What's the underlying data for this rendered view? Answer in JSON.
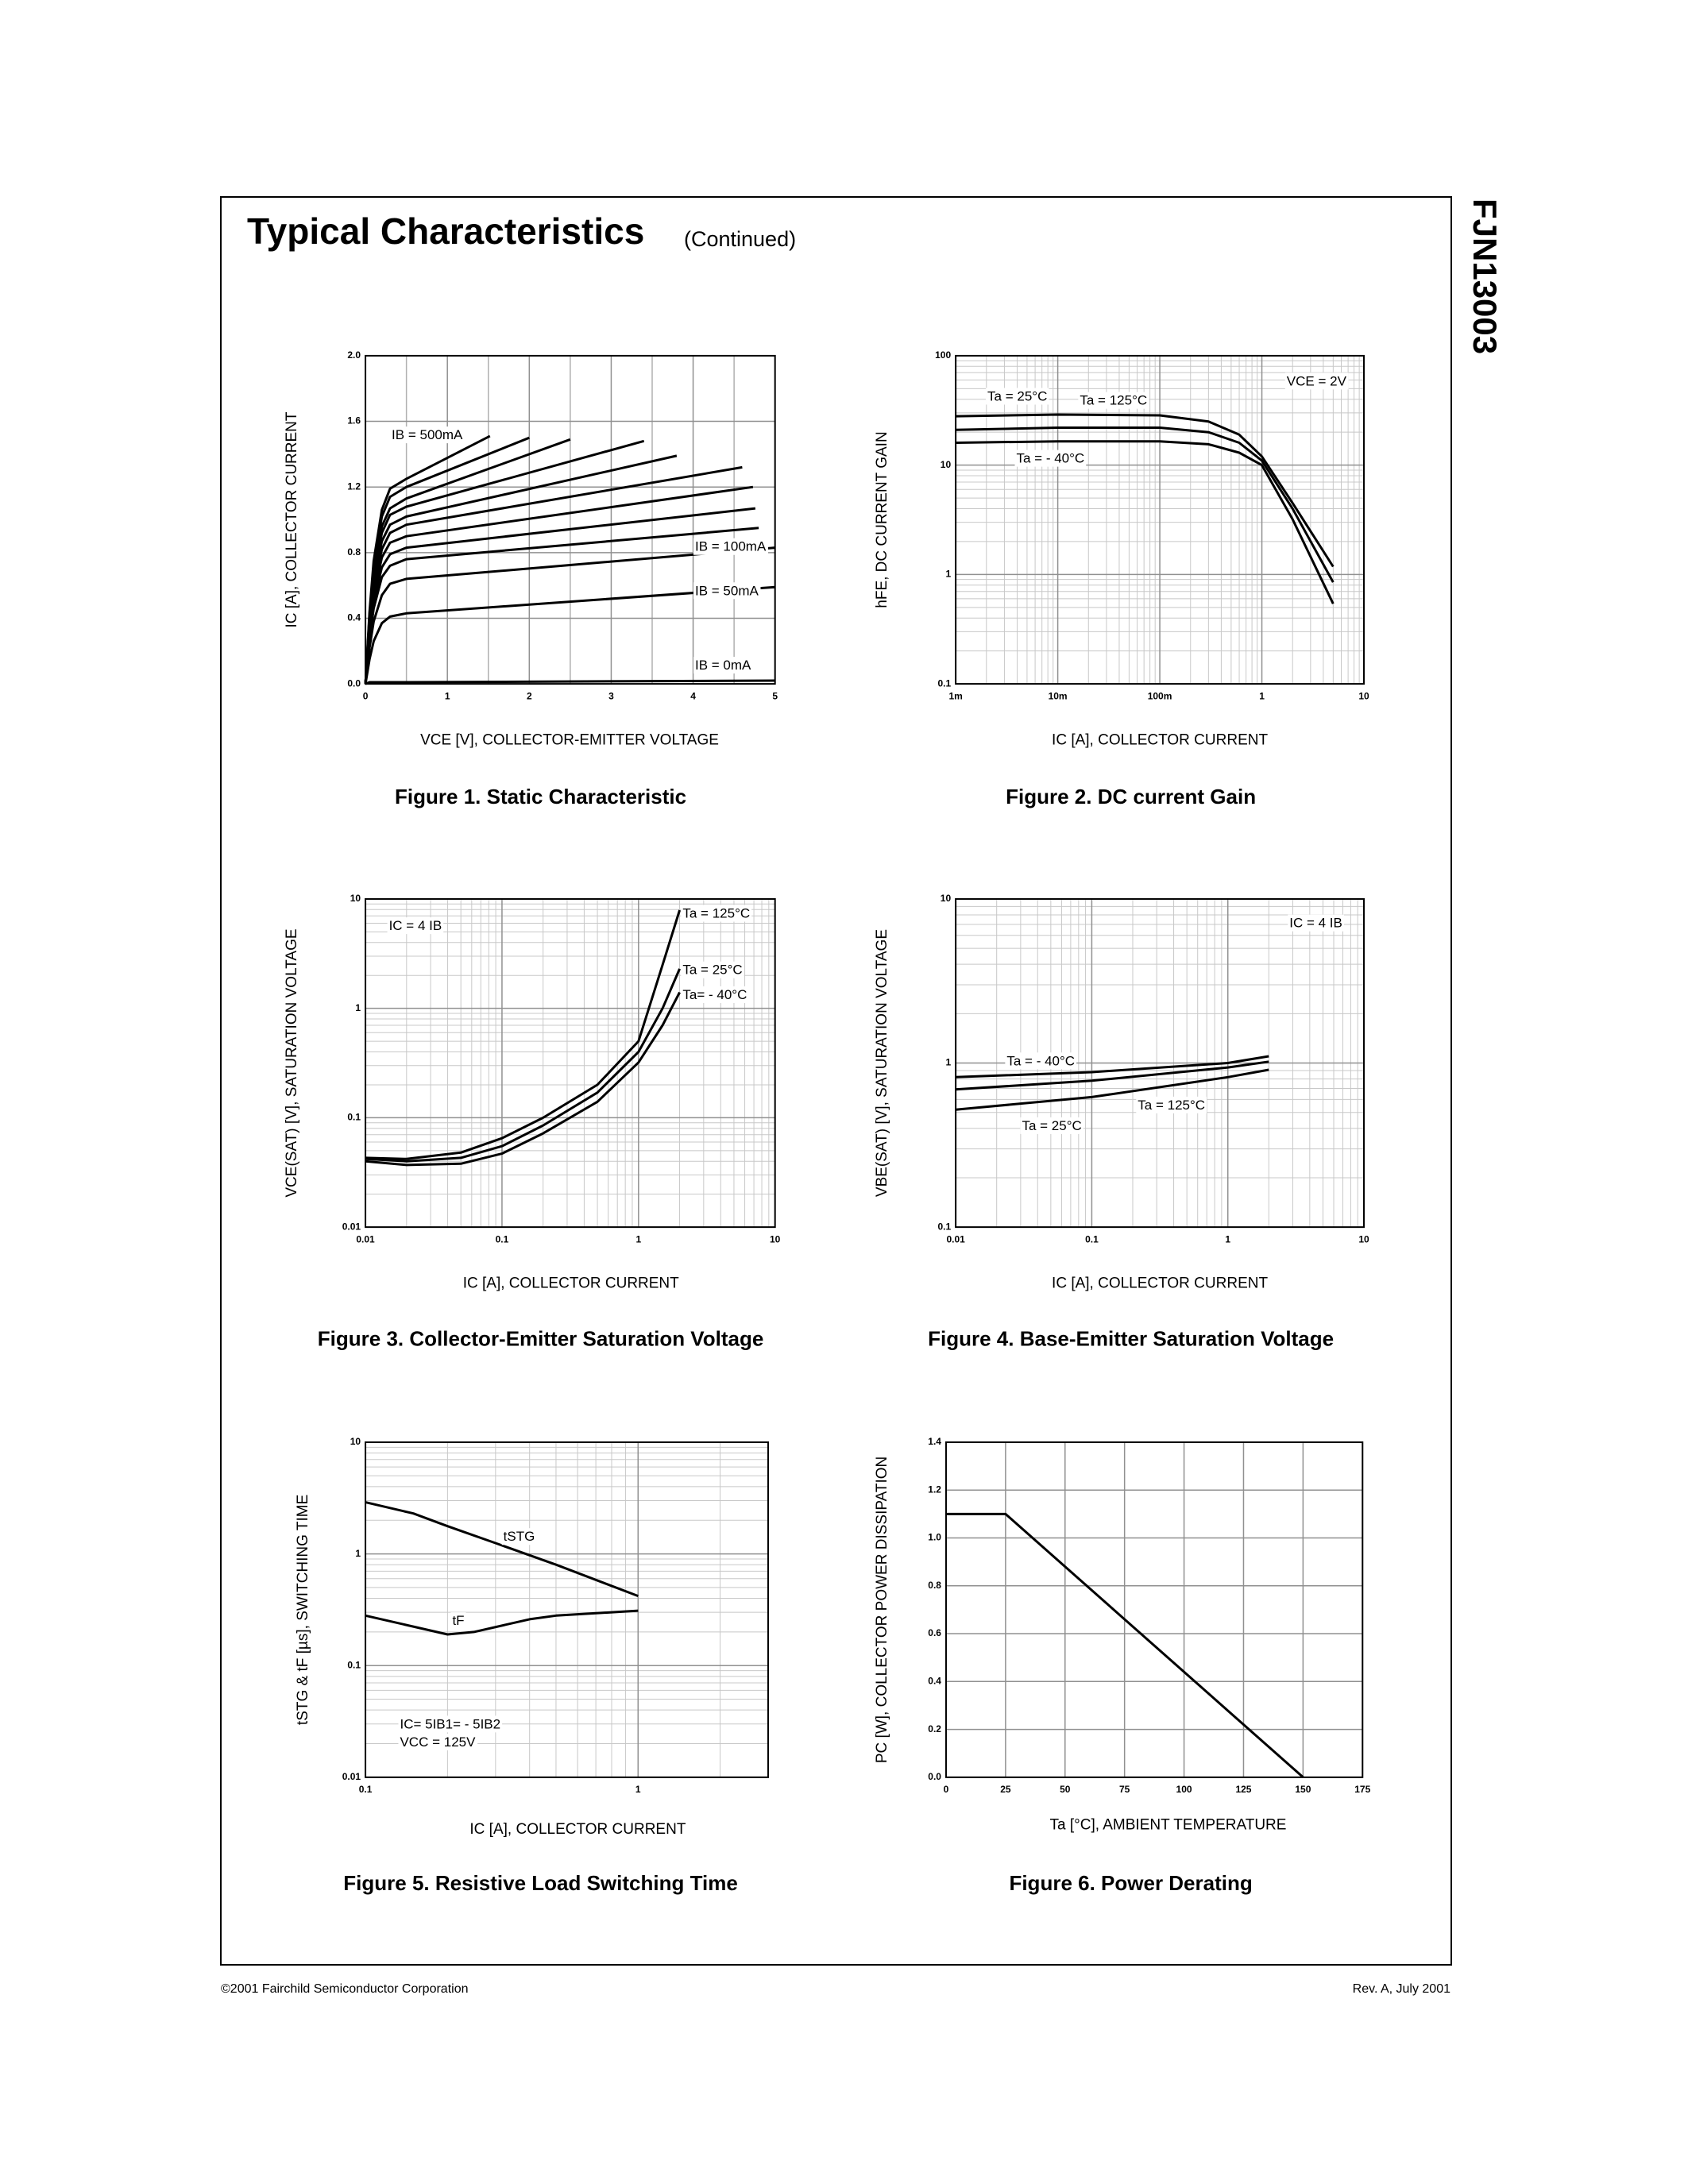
{
  "header": {
    "title": "Typical Characteristics",
    "subtitle": "(Continued)",
    "part_number": "FJN13003"
  },
  "chart_data": [
    {
      "type": "line",
      "title": "Figure 1. Static Characteristic",
      "xlabel": "VCE [V], COLLECTOR-EMITTER VOLTAGE",
      "ylabel": "IC [A], COLLECTOR CURRENT",
      "xscale": "linear",
      "yscale": "linear",
      "xlim": [
        0,
        5
      ],
      "ylim": [
        0,
        2
      ],
      "xticks": [
        0,
        1,
        2,
        3,
        4,
        5
      ],
      "yticks": [
        {
          "value": 0,
          "label": "0.0"
        },
        0.4,
        0.8,
        1.2,
        1.6,
        {
          "value": 2,
          "label": "2.0"
        }
      ],
      "grid": true,
      "series": [
        {
          "name": "IB = 500mA",
          "color": "#000000",
          "x": [
            0,
            0.05,
            0.1,
            0.2,
            0.3,
            0.5,
            1.52
          ],
          "values": [
            0,
            0.44,
            0.75,
            1.06,
            1.19,
            1.25,
            1.51
          ]
        },
        {
          "color": "#000000",
          "x": [
            0,
            0.05,
            0.1,
            0.2,
            0.3,
            0.5,
            2.0
          ],
          "values": [
            0,
            0.42,
            0.72,
            1.02,
            1.14,
            1.2,
            1.5
          ]
        },
        {
          "color": "#000000",
          "x": [
            0,
            0.05,
            0.1,
            0.2,
            0.3,
            0.5,
            2.5
          ],
          "values": [
            0,
            0.4,
            0.68,
            0.96,
            1.07,
            1.13,
            1.49
          ]
        },
        {
          "color": "#000000",
          "x": [
            0,
            0.05,
            0.1,
            0.2,
            0.3,
            0.5,
            3.4
          ],
          "values": [
            0,
            0.38,
            0.65,
            0.92,
            1.03,
            1.08,
            1.48
          ]
        },
        {
          "color": "#000000",
          "x": [
            0,
            0.05,
            0.1,
            0.2,
            0.3,
            0.5,
            3.8
          ],
          "values": [
            0,
            0.36,
            0.61,
            0.87,
            0.97,
            1.02,
            1.39
          ]
        },
        {
          "color": "#000000",
          "x": [
            0,
            0.05,
            0.1,
            0.2,
            0.3,
            0.5,
            4.6
          ],
          "values": [
            0,
            0.34,
            0.58,
            0.82,
            0.92,
            0.97,
            1.32
          ]
        },
        {
          "color": "#000000",
          "x": [
            0,
            0.05,
            0.1,
            0.2,
            0.3,
            0.5,
            4.73
          ],
          "values": [
            0,
            0.32,
            0.54,
            0.77,
            0.86,
            0.9,
            1.2
          ]
        },
        {
          "color": "#000000",
          "x": [
            0,
            0.05,
            0.1,
            0.2,
            0.3,
            0.5,
            4.76
          ],
          "values": [
            0,
            0.29,
            0.5,
            0.71,
            0.79,
            0.83,
            1.07
          ]
        },
        {
          "color": "#000000",
          "x": [
            0,
            0.05,
            0.1,
            0.2,
            0.3,
            0.5,
            4.8
          ],
          "values": [
            0,
            0.27,
            0.46,
            0.65,
            0.72,
            0.76,
            0.95
          ]
        },
        {
          "name": "IB = 100mA",
          "color": "#000000",
          "x": [
            0,
            0.05,
            0.1,
            0.2,
            0.3,
            0.5,
            5
          ],
          "values": [
            0,
            0.22,
            0.38,
            0.54,
            0.61,
            0.64,
            0.83
          ]
        },
        {
          "name": "IB = 50mA",
          "color": "#000000",
          "x": [
            0,
            0.05,
            0.1,
            0.2,
            0.3,
            0.5,
            5
          ],
          "values": [
            0,
            0.15,
            0.26,
            0.37,
            0.41,
            0.43,
            0.59
          ]
        },
        {
          "name": "IB = 0mA",
          "color": "#000000",
          "x": [
            0,
            0.05,
            0.1,
            0.2,
            0.3,
            0.5,
            5
          ],
          "values": [
            0,
            0.01,
            0.01,
            0.01,
            0.01,
            0.01,
            0.02
          ]
        }
      ],
      "annotations": []
    },
    {
      "type": "line",
      "title": "Figure 2. DC current Gain",
      "xlabel": "IC [A], COLLECTOR CURRENT",
      "ylabel": "hFE, DC CURRENT GAIN",
      "xscale": "log",
      "yscale": "log",
      "xlim": [
        0.001,
        10
      ],
      "ylim": [
        0.1,
        100
      ],
      "xticks": [
        {
          "value": 0.001,
          "label": "1m"
        },
        {
          "value": 0.01,
          "label": "10m"
        },
        {
          "value": 0.1,
          "label": "100m"
        },
        1,
        10
      ],
      "yticks": [
        0.1,
        1,
        10,
        100
      ],
      "grid": true,
      "series": [
        {
          "name": "Ta = 125°C",
          "color": "#000000",
          "x": [
            0.001,
            0.01,
            0.1,
            0.3,
            0.6,
            1,
            2,
            5
          ],
          "values": [
            28,
            29,
            28.5,
            25,
            19,
            12,
            4.5,
            1.18
          ]
        },
        {
          "name": "Ta = 25°C",
          "color": "#000000",
          "x": [
            0.001,
            0.01,
            0.1,
            0.3,
            0.6,
            1,
            2,
            5
          ],
          "values": [
            21,
            22,
            22,
            20,
            16,
            11,
            4,
            0.85
          ]
        },
        {
          "name": "Ta = - 40°C",
          "color": "#000000",
          "x": [
            0.001,
            0.01,
            0.1,
            0.3,
            0.6,
            1,
            2,
            5
          ],
          "values": [
            16,
            16.5,
            16.5,
            15.5,
            13,
            10,
            3.2,
            0.54
          ]
        }
      ],
      "annotations": [
        "VCE = 2V"
      ]
    },
    {
      "type": "line",
      "title": "Figure 3. Collector-Emitter Saturation Voltage",
      "xlabel": "IC [A], COLLECTOR CURRENT",
      "ylabel": "VCE(SAT) [V], SATURATION VOLTAGE",
      "xscale": "log",
      "yscale": "log",
      "xlim": [
        0.01,
        10
      ],
      "ylim": [
        0.01,
        10
      ],
      "xticks": [
        0.01,
        0.1,
        1,
        10
      ],
      "yticks": [
        0.01,
        0.1,
        1,
        10
      ],
      "grid": true,
      "series": [
        {
          "name": "Ta = 125°C",
          "color": "#000000",
          "x": [
            0.01,
            0.02,
            0.05,
            0.1,
            0.2,
            0.5,
            1,
            1.5,
            2
          ],
          "values": [
            0.043,
            0.042,
            0.048,
            0.065,
            0.1,
            0.2,
            0.5,
            2.5,
            7.9
          ]
        },
        {
          "name": "Ta = 25°C",
          "color": "#000000",
          "x": [
            0.01,
            0.02,
            0.05,
            0.1,
            0.2,
            0.5,
            1,
            1.5,
            2
          ],
          "values": [
            0.042,
            0.04,
            0.043,
            0.055,
            0.085,
            0.17,
            0.4,
            1.0,
            2.3
          ]
        },
        {
          "name": "Ta= - 40°C",
          "color": "#000000",
          "x": [
            0.01,
            0.02,
            0.05,
            0.1,
            0.2,
            0.5,
            1,
            1.5,
            2
          ],
          "values": [
            0.04,
            0.037,
            0.038,
            0.047,
            0.072,
            0.14,
            0.32,
            0.7,
            1.4
          ]
        }
      ],
      "annotations": [
        "IC = 4 IB"
      ]
    },
    {
      "type": "line",
      "title": "Figure 4. Base-Emitter Saturation Voltage",
      "xlabel": "IC [A], COLLECTOR CURRENT",
      "ylabel": "VBE(SAT) [V], SATURATION VOLTAGE",
      "xscale": "log",
      "yscale": "log",
      "xlim": [
        0.01,
        10
      ],
      "ylim": [
        0.1,
        10
      ],
      "xticks": [
        0.01,
        0.1,
        1,
        10
      ],
      "yticks": [
        0.1,
        1,
        10
      ],
      "grid": true,
      "series": [
        {
          "name": "Ta = - 40°C",
          "color": "#000000",
          "x": [
            0.01,
            0.1,
            1,
            2
          ],
          "values": [
            0.82,
            0.88,
            1.0,
            1.1
          ]
        },
        {
          "name": "Ta = 25°C",
          "color": "#000000",
          "x": [
            0.01,
            0.1,
            1,
            2
          ],
          "values": [
            0.69,
            0.78,
            0.94,
            1.02
          ]
        },
        {
          "name": "Ta = 125°C",
          "color": "#000000",
          "x": [
            0.01,
            0.1,
            1,
            2
          ],
          "values": [
            0.52,
            0.62,
            0.82,
            0.91
          ]
        }
      ],
      "annotations": [
        "IC = 4 IB"
      ]
    },
    {
      "type": "line",
      "title": "Figure 5. Resistive Load Switching Time",
      "xlabel": "IC [A], COLLECTOR CURRENT",
      "ylabel": "tSTG & tF [µs], SWITCHING TIME",
      "xscale": "log",
      "yscale": "log",
      "xlim": [
        0.1,
        3
      ],
      "ylim": [
        0.01,
        10
      ],
      "xticks": [
        0.1,
        1
      ],
      "yticks": [
        0.01,
        0.1,
        1,
        10
      ],
      "grid": true,
      "series": [
        {
          "name": "tSTG",
          "color": "#000000",
          "x": [
            0.1,
            0.15,
            0.2,
            0.3,
            0.5,
            1
          ],
          "values": [
            2.9,
            2.3,
            1.77,
            1.25,
            0.8,
            0.42
          ]
        },
        {
          "name": "tF",
          "color": "#000000",
          "x": [
            0.1,
            0.2,
            0.25,
            0.4,
            0.5,
            1
          ],
          "values": [
            0.28,
            0.19,
            0.2,
            0.26,
            0.28,
            0.31
          ]
        }
      ],
      "annotations": [
        "IC= 5IB1= - 5IB2",
        "VCC = 125V"
      ]
    },
    {
      "type": "line",
      "title": "Figure 6. Power Derating",
      "xlabel": "Ta [°C], AMBIENT TEMPERATURE",
      "ylabel": "PC [W], COLLECTOR POWER DISSIPATION",
      "xscale": "linear",
      "yscale": "linear",
      "xlim": [
        0,
        175
      ],
      "ylim": [
        0,
        1.4
      ],
      "xticks": [
        0,
        25,
        50,
        75,
        100,
        125,
        150,
        175
      ],
      "yticks": [
        {
          "value": 0,
          "label": "0.0"
        },
        0.2,
        0.4,
        0.6,
        0.8,
        {
          "value": 1,
          "label": "1.0"
        },
        1.2,
        1.4
      ],
      "grid": true,
      "series": [
        {
          "color": "#000000",
          "x": [
            0,
            25,
            150
          ],
          "values": [
            1.1,
            1.1,
            0
          ]
        }
      ],
      "annotations": []
    }
  ],
  "footer": {
    "copyright": "©2001 Fairchild Semiconductor Corporation",
    "revision": "Rev. A, July 2001"
  }
}
